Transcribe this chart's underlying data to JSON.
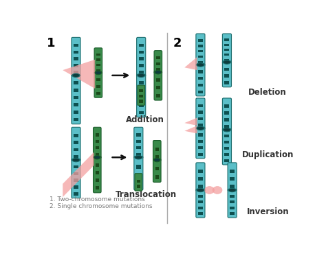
{
  "bg_color": "#ffffff",
  "teal_dark": "#1a6b6b",
  "teal_light": "#5bbfc8",
  "green_dark": "#1a5c2a",
  "green_light": "#3a8a4a",
  "centromere_color": "#0d3d3d",
  "pink": "#f4a0a0",
  "arrow_color": "#111111",
  "text_color": "#333333",
  "divider_color": "#aaaaaa",
  "label_addition": "Addition",
  "label_translocation": "Translocation",
  "label_deletion": "Deletion",
  "label_duplication": "Duplication",
  "label_inversion": "Inversion",
  "note1": "1. Two-chromosome mutations",
  "note2": "2. Single chromosome mutations",
  "title1": "1",
  "title2": "2"
}
